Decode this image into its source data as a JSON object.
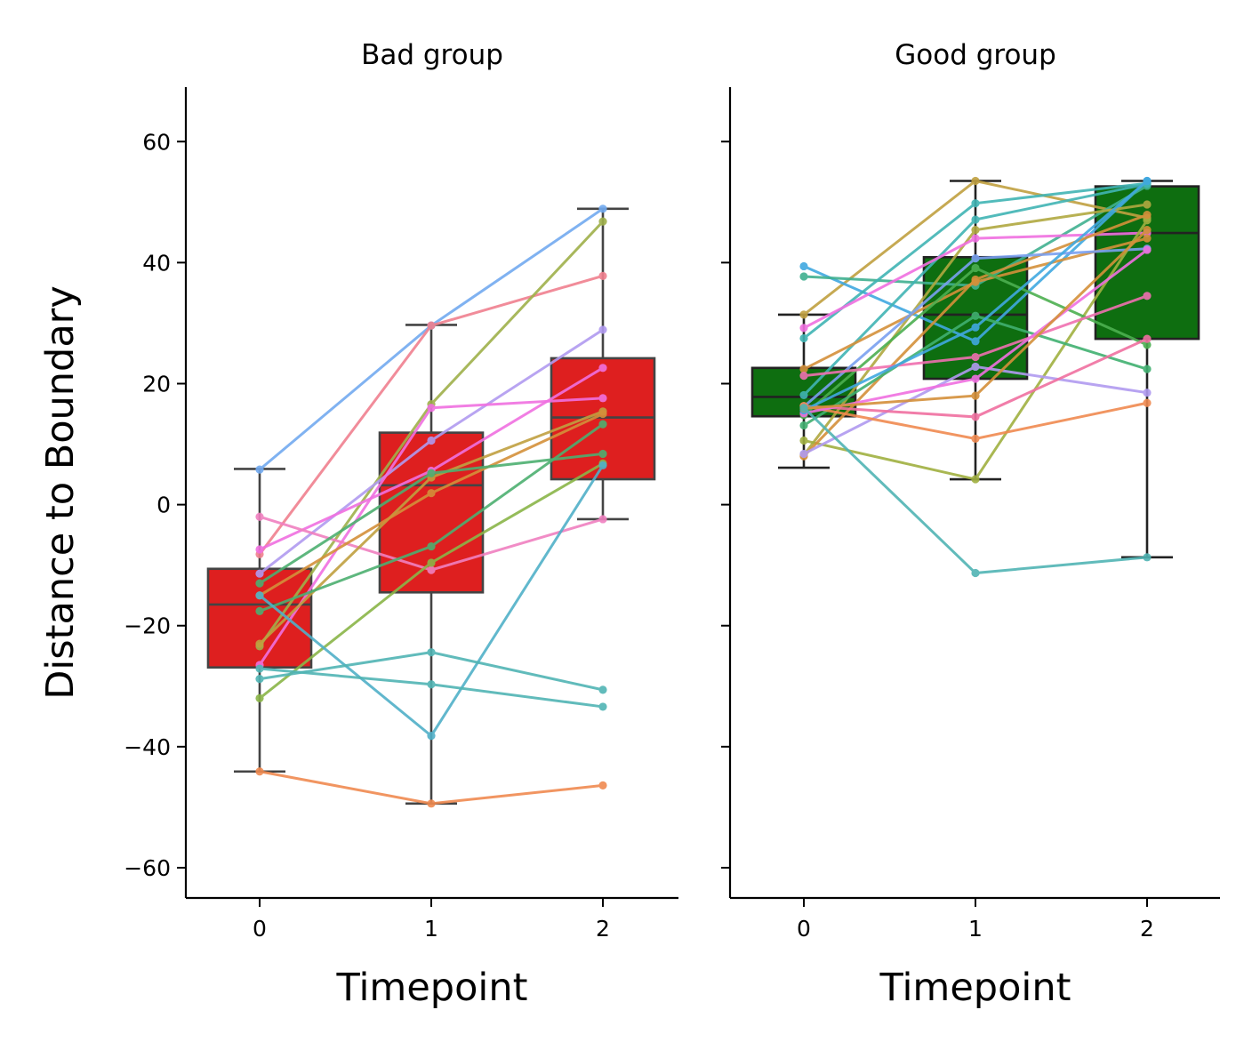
{
  "chart_data": {
    "type": "box",
    "ylabel": "Distance to Boundary",
    "ylim": [
      -65,
      69
    ],
    "yticks": [
      -60,
      -40,
      -20,
      0,
      20,
      40,
      60
    ],
    "ytick_labels": [
      "−60",
      "−40",
      "−20",
      "0",
      "20",
      "40",
      "60"
    ],
    "xticks": [
      0,
      1,
      2
    ],
    "panels": [
      {
        "title": "Bad group",
        "xlabel": "Timepoint",
        "box_color": "#de1f1f",
        "boxes": [
          {
            "x": 0,
            "q1": -26.9,
            "median": -16.5,
            "q3": -10.6,
            "whisker_low": -44.1,
            "whisker_high": 5.9
          },
          {
            "x": 1,
            "q1": -14.5,
            "median": 3.2,
            "q3": 11.9,
            "whisker_low": -49.4,
            "whisker_high": 29.7
          },
          {
            "x": 2,
            "q1": 4.2,
            "median": 14.4,
            "q3": 24.2,
            "whisker_low": -2.4,
            "whisker_high": 48.9
          }
        ],
        "subjects": [
          {
            "color": "#72aaf0",
            "values": [
              5.8,
              29.6,
              48.9
            ]
          },
          {
            "color": "#f0808f",
            "values": [
              -8.2,
              29.6,
              37.8
            ]
          },
          {
            "color": "#9fb04a",
            "values": [
              -23.4,
              16.6,
              46.8
            ]
          },
          {
            "color": "#b09af0",
            "values": [
              -11.4,
              10.6,
              28.9
            ]
          },
          {
            "color": "#f070e0",
            "values": [
              -26.5,
              16.0,
              17.6
            ]
          },
          {
            "color": "#f070e0",
            "values": [
              -7.4,
              5.6,
              22.6
            ]
          },
          {
            "color": "#f080c0",
            "values": [
              -2.0,
              -10.8,
              -2.4
            ]
          },
          {
            "color": "#c0a040",
            "values": [
              -23.0,
              4.5,
              15.4
            ]
          },
          {
            "color": "#d4903a",
            "values": [
              -15.0,
              1.9,
              15.0
            ]
          },
          {
            "color": "#4caf70",
            "values": [
              -13.0,
              5.2,
              8.4
            ]
          },
          {
            "color": "#4caf70",
            "values": [
              -17.6,
              -6.9,
              13.3
            ]
          },
          {
            "color": "#8ab548",
            "values": [
              -32.0,
              -9.6,
              6.8
            ]
          },
          {
            "color": "#50b0c8",
            "values": [
              -15.0,
              -38.2,
              6.5
            ]
          },
          {
            "color": "#50b4b4",
            "values": [
              -27.1,
              -29.7,
              -33.4
            ]
          },
          {
            "color": "#50b4b4",
            "values": [
              -28.8,
              -24.4,
              -30.6
            ]
          },
          {
            "color": "#f08a50",
            "values": [
              -44.1,
              -49.4,
              -46.4
            ]
          }
        ]
      },
      {
        "title": "Good group",
        "xlabel": "Timepoint",
        "box_color": "#0e6e10",
        "boxes": [
          {
            "x": 0,
            "q1": 14.6,
            "median": 17.8,
            "q3": 22.6,
            "whisker_low": 6.1,
            "whisker_high": 31.4
          },
          {
            "x": 1,
            "q1": 20.8,
            "median": 31.4,
            "q3": 40.9,
            "whisker_low": 4.2,
            "whisker_high": 53.5
          },
          {
            "x": 2,
            "q1": 27.4,
            "median": 44.9,
            "q3": 52.6,
            "whisker_low": -8.7,
            "whisker_high": 53.5
          }
        ],
        "subjects": [
          {
            "color": "#c0a040",
            "values": [
              31.4,
              53.5,
              47.4
            ]
          },
          {
            "color": "#40a8e0",
            "values": [
              39.4,
              27.0,
              53.5
            ]
          },
          {
            "color": "#40b090",
            "values": [
              37.7,
              36.2,
              52.7
            ]
          },
          {
            "color": "#40b4b4",
            "values": [
              27.5,
              49.8,
              53.1
            ]
          },
          {
            "color": "#40b4b4",
            "values": [
              18.1,
              47.1,
              53.0
            ]
          },
          {
            "color": "#b0a840",
            "values": [
              8.2,
              45.4,
              49.6
            ]
          },
          {
            "color": "#f070e0",
            "values": [
              29.2,
              44.0,
              44.9
            ]
          },
          {
            "color": "#a0b040",
            "values": [
              10.6,
              4.2,
              47.0
            ]
          },
          {
            "color": "#d4903a",
            "values": [
              8.0,
              37.2,
              47.9
            ]
          },
          {
            "color": "#d4903a",
            "values": [
              22.4,
              36.8,
              44.0
            ]
          },
          {
            "color": "#4caf50",
            "values": [
              14.8,
              39.1,
              26.4
            ]
          },
          {
            "color": "#40b070",
            "values": [
              13.1,
              31.2,
              22.4
            ]
          },
          {
            "color": "#7aa0f0",
            "values": [
              16.2,
              40.7,
              42.3
            ]
          },
          {
            "color": "#b09af0",
            "values": [
              8.4,
              22.8,
              18.5
            ]
          },
          {
            "color": "#f070b0",
            "values": [
              21.3,
              24.4,
              34.5
            ]
          },
          {
            "color": "#f070a0",
            "values": [
              16.3,
              14.5,
              27.4
            ]
          },
          {
            "color": "#f08a50",
            "values": [
              16.3,
              10.9,
              16.8
            ]
          },
          {
            "color": "#f070e0",
            "values": [
              15.1,
              20.8,
              42.1
            ]
          },
          {
            "color": "#40a8e0",
            "values": [
              15.6,
              29.3,
              53.5
            ]
          },
          {
            "color": "#d4903a",
            "values": [
              15.9,
              18.0,
              45.4
            ]
          },
          {
            "color": "#50b4b4",
            "values": [
              16.0,
              -11.3,
              -8.7
            ]
          }
        ]
      }
    ]
  }
}
